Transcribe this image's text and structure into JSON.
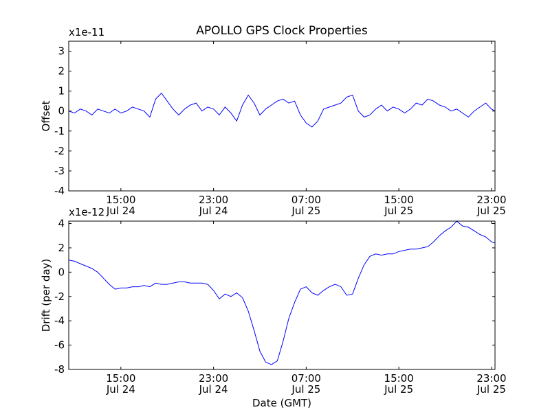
{
  "figure": {
    "title": "APOLLO GPS Clock Properties",
    "xlabel": "Date (GMT)"
  },
  "chart_data": [
    {
      "type": "line",
      "title": "APOLLO GPS Clock Properties",
      "ylabel": "Offset",
      "exponent_label": "x1e-11",
      "x_ticks": [
        {
          "time": "15:00",
          "date": "Jul 24",
          "x": 15
        },
        {
          "time": "23:00",
          "date": "Jul 24",
          "x": 23
        },
        {
          "time": "07:00",
          "date": "Jul 25",
          "x": 31
        },
        {
          "time": "15:00",
          "date": "Jul 25",
          "x": 39
        },
        {
          "time": "23:00",
          "date": "Jul 25",
          "x": 47
        }
      ],
      "xlim": [
        10.5,
        47.3
      ],
      "ylim": [
        -4,
        3.5
      ],
      "y_ticks": [
        -4,
        -3,
        -2,
        -1,
        0,
        1,
        2,
        3
      ],
      "series": [
        {
          "color": "#0000ff",
          "x": [
            10.5,
            11.0,
            11.5,
            12.0,
            12.5,
            13.0,
            13.5,
            14.0,
            14.5,
            15.0,
            15.5,
            16.0,
            16.5,
            17.0,
            17.5,
            18.0,
            18.5,
            19.0,
            19.5,
            20.0,
            20.5,
            21.0,
            21.5,
            22.0,
            22.5,
            23.0,
            23.5,
            24.0,
            24.5,
            25.0,
            25.5,
            26.0,
            26.5,
            27.0,
            27.5,
            28.0,
            28.5,
            29.0,
            29.5,
            30.0,
            30.5,
            31.0,
            31.5,
            32.0,
            32.5,
            33.0,
            33.5,
            34.0,
            34.5,
            35.0,
            35.5,
            36.0,
            36.5,
            37.0,
            37.5,
            38.0,
            38.5,
            39.0,
            39.5,
            40.0,
            40.5,
            41.0,
            41.5,
            42.0,
            42.5,
            43.0,
            43.5,
            44.0,
            44.5,
            45.0,
            45.5,
            46.0,
            46.5,
            47.0,
            47.3
          ],
          "y": [
            0.0,
            -0.1,
            0.1,
            0.0,
            -0.2,
            0.1,
            0.0,
            -0.1,
            0.1,
            -0.1,
            0.0,
            0.2,
            0.1,
            0.0,
            -0.3,
            0.6,
            0.9,
            0.5,
            0.1,
            -0.2,
            0.1,
            0.3,
            0.4,
            0.0,
            0.2,
            0.1,
            -0.2,
            0.2,
            -0.1,
            -0.5,
            0.3,
            0.8,
            0.4,
            -0.2,
            0.1,
            0.3,
            0.5,
            0.6,
            0.4,
            0.5,
            -0.2,
            -0.6,
            -0.8,
            -0.5,
            0.1,
            0.2,
            0.3,
            0.4,
            0.7,
            0.8,
            0.0,
            -0.3,
            -0.2,
            0.1,
            0.3,
            0.0,
            0.2,
            0.1,
            -0.1,
            0.1,
            0.4,
            0.3,
            0.6,
            0.5,
            0.3,
            0.2,
            0.0,
            0.1,
            -0.1,
            -0.3,
            0.0,
            0.2,
            0.4,
            0.1,
            0.0
          ]
        }
      ]
    },
    {
      "type": "line",
      "ylabel": "Drift (per day)",
      "exponent_label": "x1e-12",
      "xlabel": "Date (GMT)",
      "x_ticks": [
        {
          "time": "15:00",
          "date": "Jul 24",
          "x": 15
        },
        {
          "time": "23:00",
          "date": "Jul 24",
          "x": 23
        },
        {
          "time": "07:00",
          "date": "Jul 25",
          "x": 31
        },
        {
          "time": "15:00",
          "date": "Jul 25",
          "x": 39
        },
        {
          "time": "23:00",
          "date": "Jul 25",
          "x": 47
        }
      ],
      "xlim": [
        10.5,
        47.3
      ],
      "ylim": [
        -8,
        4.2
      ],
      "y_ticks": [
        -8,
        -6,
        -4,
        -2,
        0,
        2,
        4
      ],
      "series": [
        {
          "color": "#0000ff",
          "x": [
            10.5,
            11.0,
            11.5,
            12.0,
            12.5,
            13.0,
            13.5,
            14.0,
            14.5,
            15.0,
            15.5,
            16.0,
            16.5,
            17.0,
            17.5,
            18.0,
            18.5,
            19.0,
            19.5,
            20.0,
            20.5,
            21.0,
            21.5,
            22.0,
            22.5,
            23.0,
            23.5,
            24.0,
            24.5,
            25.0,
            25.5,
            26.0,
            26.5,
            27.0,
            27.5,
            28.0,
            28.5,
            29.0,
            29.5,
            30.0,
            30.5,
            31.0,
            31.5,
            32.0,
            32.5,
            33.0,
            33.5,
            34.0,
            34.5,
            35.0,
            35.5,
            36.0,
            36.5,
            37.0,
            37.5,
            38.0,
            38.5,
            39.0,
            39.5,
            40.0,
            40.5,
            41.0,
            41.5,
            42.0,
            42.5,
            43.0,
            43.5,
            44.0,
            44.5,
            45.0,
            45.5,
            46.0,
            46.5,
            47.0,
            47.3
          ],
          "y": [
            1.0,
            0.9,
            0.7,
            0.5,
            0.3,
            0.0,
            -0.5,
            -1.0,
            -1.4,
            -1.3,
            -1.3,
            -1.2,
            -1.2,
            -1.1,
            -1.2,
            -0.9,
            -1.0,
            -1.0,
            -0.9,
            -0.8,
            -0.8,
            -0.9,
            -0.9,
            -0.9,
            -1.0,
            -1.5,
            -2.2,
            -1.8,
            -2.0,
            -1.7,
            -2.1,
            -3.2,
            -4.8,
            -6.5,
            -7.4,
            -7.6,
            -7.3,
            -5.7,
            -3.8,
            -2.5,
            -1.4,
            -1.2,
            -1.7,
            -1.9,
            -1.5,
            -1.2,
            -1.0,
            -1.2,
            -1.9,
            -1.8,
            -0.5,
            0.6,
            1.3,
            1.5,
            1.4,
            1.5,
            1.5,
            1.7,
            1.8,
            1.9,
            1.9,
            2.0,
            2.1,
            2.5,
            3.0,
            3.4,
            3.7,
            4.2,
            3.8,
            3.7,
            3.4,
            3.1,
            2.9,
            2.5,
            2.4
          ]
        }
      ]
    }
  ]
}
